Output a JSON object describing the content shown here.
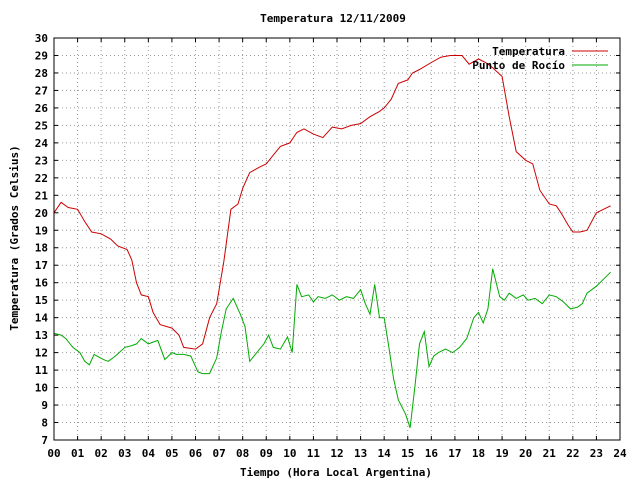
{
  "chart_data": {
    "type": "line",
    "title": "Temperatura 12/11/2009",
    "xlabel": "Tiempo (Hora Local Argentina)",
    "ylabel": "Temperatura (Grados Celsius)",
    "xlim": [
      0,
      24
    ],
    "ylim": [
      7,
      30
    ],
    "x_ticks": [
      0,
      1,
      2,
      3,
      4,
      5,
      6,
      7,
      8,
      9,
      10,
      11,
      12,
      13,
      14,
      15,
      16,
      17,
      18,
      19,
      20,
      21,
      22,
      23,
      24
    ],
    "x_tick_labels": [
      "00",
      "01",
      "02",
      "03",
      "04",
      "05",
      "06",
      "07",
      "08",
      "09",
      "10",
      "11",
      "12",
      "13",
      "14",
      "15",
      "16",
      "17",
      "18",
      "19",
      "20",
      "21",
      "22",
      "23",
      "24"
    ],
    "y_ticks": [
      7,
      8,
      9,
      10,
      11,
      12,
      13,
      14,
      15,
      16,
      17,
      18,
      19,
      20,
      21,
      22,
      23,
      24,
      25,
      26,
      27,
      28,
      29,
      30
    ],
    "grid": true,
    "legend_position": "top-right",
    "series": [
      {
        "name": "Temperatura",
        "color": "#cc0000",
        "x": [
          0,
          0.3,
          0.6,
          1.0,
          1.3,
          1.6,
          2.0,
          2.4,
          2.7,
          3.1,
          3.3,
          3.5,
          3.7,
          4.0,
          4.2,
          4.5,
          5.0,
          5.3,
          5.5,
          6.0,
          6.3,
          6.6,
          6.9,
          7.2,
          7.5,
          7.8,
          8.0,
          8.3,
          8.7,
          9.0,
          9.3,
          9.6,
          10.0,
          10.3,
          10.6,
          11.0,
          11.4,
          11.8,
          12.2,
          12.6,
          13.0,
          13.4,
          13.8,
          14.0,
          14.3,
          14.6,
          15.0,
          15.2,
          15.5,
          16.0,
          16.4,
          16.8,
          17.3,
          17.6,
          18.0,
          18.3,
          18.6,
          19.0,
          19.3,
          19.6,
          20.0,
          20.3,
          20.6,
          21.0,
          21.3,
          21.5,
          21.8,
          22.0,
          22.3,
          22.6,
          23.0,
          23.3,
          23.6
        ],
        "values": [
          20.0,
          20.6,
          20.3,
          20.2,
          19.5,
          18.9,
          18.8,
          18.5,
          18.1,
          17.9,
          17.3,
          16.0,
          15.3,
          15.2,
          14.3,
          13.6,
          13.4,
          13.0,
          12.3,
          12.2,
          12.5,
          14.0,
          14.8,
          17.2,
          20.2,
          20.5,
          21.4,
          22.3,
          22.6,
          22.8,
          23.3,
          23.8,
          24.0,
          24.6,
          24.8,
          24.5,
          24.3,
          24.9,
          24.8,
          25.0,
          25.1,
          25.5,
          25.8,
          26.0,
          26.5,
          27.4,
          27.6,
          28.0,
          28.2,
          28.6,
          28.9,
          29.0,
          29.0,
          28.5,
          28.8,
          28.6,
          28.3,
          27.8,
          25.5,
          23.5,
          23.0,
          22.8,
          21.3,
          20.5,
          20.4,
          20.0,
          19.3,
          18.9,
          18.9,
          19.0,
          20.0,
          20.2,
          20.4
        ]
      },
      {
        "name": "Punto de Rocío",
        "color": "#00aa00",
        "x": [
          0,
          0.3,
          0.5,
          0.8,
          1.1,
          1.3,
          1.5,
          1.7,
          2.1,
          2.3,
          2.6,
          3.0,
          3.3,
          3.5,
          3.7,
          4.0,
          4.2,
          4.4,
          4.7,
          5.0,
          5.2,
          5.5,
          5.8,
          6.1,
          6.3,
          6.6,
          6.9,
          7.1,
          7.3,
          7.6,
          7.9,
          8.1,
          8.3,
          8.6,
          8.9,
          9.1,
          9.3,
          9.6,
          9.9,
          10.1,
          10.3,
          10.5,
          10.8,
          11.0,
          11.2,
          11.5,
          11.8,
          12.1,
          12.4,
          12.7,
          13.0,
          13.2,
          13.4,
          13.6,
          13.8,
          14.0,
          14.2,
          14.4,
          14.6,
          14.9,
          15.1,
          15.3,
          15.5,
          15.7,
          15.9,
          16.1,
          16.3,
          16.6,
          16.9,
          17.2,
          17.5,
          17.8,
          18.0,
          18.2,
          18.4,
          18.6,
          18.9,
          19.1,
          19.3,
          19.6,
          19.9,
          20.1,
          20.4,
          20.7,
          21.0,
          21.3,
          21.6,
          21.9,
          22.2,
          22.4,
          22.6,
          23.0,
          23.3,
          23.6
        ],
        "values": [
          13.1,
          13.0,
          12.8,
          12.3,
          12.0,
          11.5,
          11.3,
          11.9,
          11.6,
          11.5,
          11.8,
          12.3,
          12.4,
          12.5,
          12.8,
          12.5,
          12.6,
          12.7,
          11.6,
          12.0,
          11.9,
          11.9,
          11.8,
          10.9,
          10.8,
          10.8,
          11.7,
          13.2,
          14.5,
          15.1,
          14.2,
          13.5,
          11.5,
          12.0,
          12.5,
          13.0,
          12.3,
          12.2,
          12.9,
          12.0,
          15.9,
          15.2,
          15.3,
          14.9,
          15.2,
          15.1,
          15.3,
          15.0,
          15.2,
          15.1,
          15.6,
          14.8,
          14.2,
          15.9,
          14.0,
          14.0,
          12.3,
          10.5,
          9.3,
          8.5,
          7.7,
          10.0,
          12.5,
          13.2,
          11.2,
          11.8,
          12.0,
          12.2,
          12.0,
          12.3,
          12.8,
          14.0,
          14.3,
          13.7,
          14.5,
          16.8,
          15.2,
          15.0,
          15.4,
          15.1,
          15.3,
          15.0,
          15.1,
          14.8,
          15.3,
          15.2,
          14.9,
          14.5,
          14.6,
          14.8,
          15.4,
          15.8,
          16.2,
          16.6
        ]
      }
    ]
  }
}
